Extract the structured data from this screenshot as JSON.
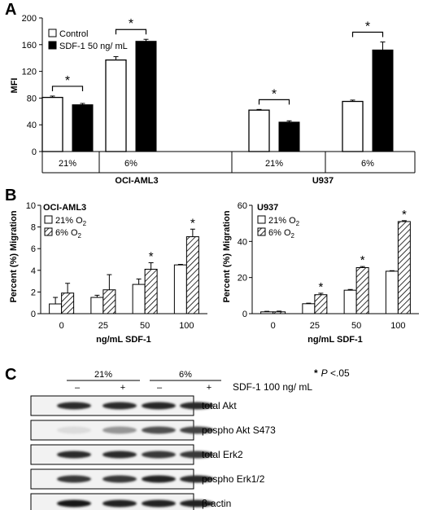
{
  "panels": {
    "a": {
      "letter": "A"
    },
    "b": {
      "letter": "B"
    },
    "c": {
      "letter": "C"
    }
  },
  "chart_data": [
    {
      "type": "bar",
      "panel": "A",
      "ylabel": "MFI",
      "ylim": [
        0,
        200
      ],
      "yticks": [
        "0",
        "40",
        "80",
        "120",
        "160",
        "200"
      ],
      "legend": {
        "control": "Control",
        "sdf": "SDF-1 50 ng/ mL"
      },
      "groups": [
        {
          "cell_line": "OCI-AML3",
          "oxygen": "21%",
          "control": 81,
          "control_err": 2,
          "sdf": 70,
          "sdf_err": 2,
          "sig": "*"
        },
        {
          "cell_line": "OCI-AML3",
          "oxygen": "6%",
          "control": 137,
          "control_err": 5,
          "sdf": 165,
          "sdf_err": 3,
          "sig": "*"
        },
        {
          "cell_line": "U937",
          "oxygen": "21%",
          "control": 62,
          "control_err": 1,
          "sdf": 44,
          "sdf_err": 2,
          "sig": "*"
        },
        {
          "cell_line": "U937",
          "oxygen": "6%",
          "control": 75,
          "control_err": 2,
          "sdf": 152,
          "sdf_err": 12,
          "sig": "*"
        }
      ],
      "cell_lines": [
        "OCI-AML3",
        "U937"
      ]
    },
    {
      "type": "bar",
      "panel": "B-left",
      "title": "OCI-AML3",
      "ylabel": "Percent (%) Migration",
      "xlabel": "ng/mL SDF-1",
      "categories": [
        "0",
        "25",
        "50",
        "100"
      ],
      "ylim": [
        0,
        10
      ],
      "yticks": [
        "0",
        "2",
        "4",
        "6",
        "8",
        "10"
      ],
      "series": [
        {
          "name": "21% O2",
          "values": [
            0.9,
            1.5,
            2.7,
            4.5
          ],
          "errors": [
            0.6,
            0.2,
            0.5,
            0.05
          ]
        },
        {
          "name": "6% O2",
          "values": [
            1.9,
            2.2,
            4.1,
            7.1
          ],
          "errors": [
            0.9,
            1.4,
            0.6,
            0.7
          ]
        }
      ],
      "significant": [
        "",
        "",
        "*",
        "*"
      ],
      "legend_labels": {
        "s1": "21% O",
        "s1_sub": "2",
        "s2": "6% O",
        "s2_sub": "2"
      }
    },
    {
      "type": "bar",
      "panel": "B-right",
      "title": "U937",
      "ylabel": "Percent (%) Migration",
      "xlabel": "ng/mL SDF-1",
      "categories": [
        "0",
        "25",
        "50",
        "100"
      ],
      "ylim": [
        0,
        60
      ],
      "yticks": [
        "0",
        "20",
        "40",
        "60"
      ],
      "series": [
        {
          "name": "21% O2",
          "values": [
            1,
            5.5,
            13,
            23.5
          ],
          "errors": [
            0.3,
            0.3,
            0.4,
            0.3
          ]
        },
        {
          "name": "6% O2",
          "values": [
            1,
            10.5,
            25.5,
            51
          ],
          "errors": [
            0.4,
            0.8,
            0.6,
            0.5
          ]
        }
      ],
      "significant": [
        "",
        "*",
        "*",
        "*"
      ],
      "legend_labels": {
        "s1": "21% O",
        "s1_sub": "2",
        "s2": "6% O",
        "s2_sub": "2"
      }
    }
  ],
  "blot": {
    "conditions": [
      "21%",
      "6%"
    ],
    "treatment_marks": [
      "–",
      "+",
      "–",
      "+"
    ],
    "treatment_label": "SDF-1 100 ng/ mL",
    "pvalue_star": "*",
    "pvalue_p": "P",
    "pvalue_rest": " <.05",
    "rows": [
      {
        "label": "total Akt",
        "intensity": [
          0.9,
          0.9,
          0.92,
          0.9
        ]
      },
      {
        "label": "pospho Akt S473",
        "intensity": [
          0.15,
          0.45,
          0.75,
          0.8
        ]
      },
      {
        "label": "total Erk2",
        "intensity": [
          0.9,
          0.9,
          0.85,
          0.85
        ]
      },
      {
        "label": "pospho Erk1/2",
        "intensity": [
          0.85,
          0.85,
          0.95,
          0.9
        ]
      },
      {
        "label": "β-actin",
        "intensity": [
          0.98,
          0.95,
          0.95,
          0.95
        ]
      }
    ]
  }
}
